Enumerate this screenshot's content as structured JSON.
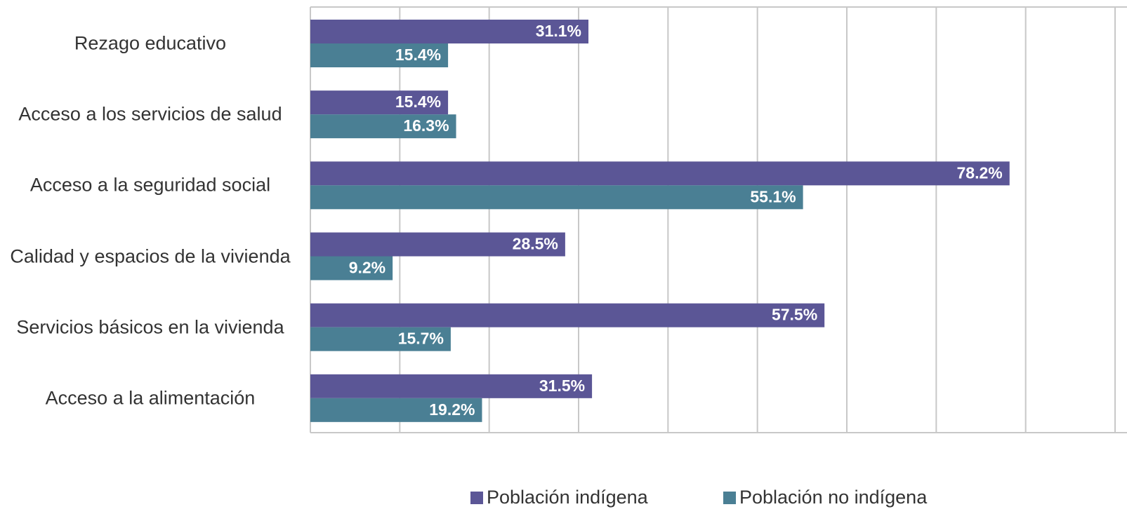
{
  "chart_data": {
    "type": "barh",
    "categories": [
      "Rezago educativo",
      "Acceso a los servicios de salud",
      "Acceso a la seguridad social",
      "Calidad y espacios de la vivienda",
      "Servicios básicos en la vivienda",
      "Acceso a la alimentación"
    ],
    "series": [
      {
        "name": "Población indígena",
        "color": "#5b5696",
        "values": [
          31.1,
          15.4,
          78.2,
          28.5,
          57.5,
          31.5
        ],
        "value_labels": [
          "31.1%",
          "15.4%",
          "78.2%",
          "28.5%",
          "57.5%",
          "31.5%"
        ]
      },
      {
        "name": "Población no indígena",
        "color": "#4a7f94",
        "values": [
          15.4,
          16.3,
          55.1,
          9.2,
          15.7,
          19.2
        ],
        "value_labels": [
          "15.4%",
          "16.3%",
          "55.1%",
          "9.2%",
          "15.7%",
          "19.2%"
        ]
      }
    ],
    "xlim": [
      0,
      90
    ],
    "xticks": [
      0,
      10,
      20,
      30,
      40,
      50,
      60,
      70,
      80,
      90
    ],
    "grid": true,
    "legend": "bottom"
  }
}
